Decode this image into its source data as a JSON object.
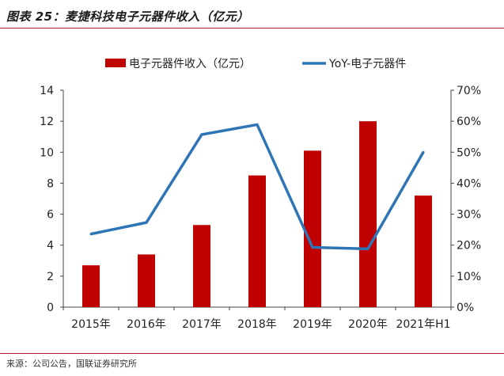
{
  "header": {
    "title": "图表 25：麦捷科技电子元器件收入（亿元）",
    "source": "来源：公司公告，国联证券研究所"
  },
  "colors": {
    "bar": "#c00000",
    "line": "#2e75b6",
    "rule": "#b0202a"
  },
  "chart_data": {
    "type": "bar",
    "categories": [
      "2015年",
      "2016年",
      "2017年",
      "2018年",
      "2019年",
      "2020年",
      "2021年H1"
    ],
    "series": [
      {
        "name": "电子元器件收入（亿元）",
        "type": "bar",
        "axis": "left",
        "values": [
          2.7,
          3.4,
          5.3,
          8.5,
          10.1,
          12.0,
          7.2
        ]
      },
      {
        "name": "YoY-电子元器件",
        "type": "line",
        "axis": "right",
        "values": [
          0.236,
          0.273,
          0.557,
          0.589,
          0.193,
          0.188,
          0.5
        ]
      }
    ],
    "y_left": {
      "lim": [
        0,
        14
      ],
      "ticks": [
        "0",
        "2",
        "4",
        "6",
        "8",
        "10",
        "12",
        "14"
      ]
    },
    "y_right": {
      "lim": [
        0,
        0.7
      ],
      "ticks": [
        "0%",
        "10%",
        "20%",
        "30%",
        "40%",
        "50%",
        "60%",
        "70%"
      ]
    },
    "legend_position": "top",
    "grid": false
  }
}
